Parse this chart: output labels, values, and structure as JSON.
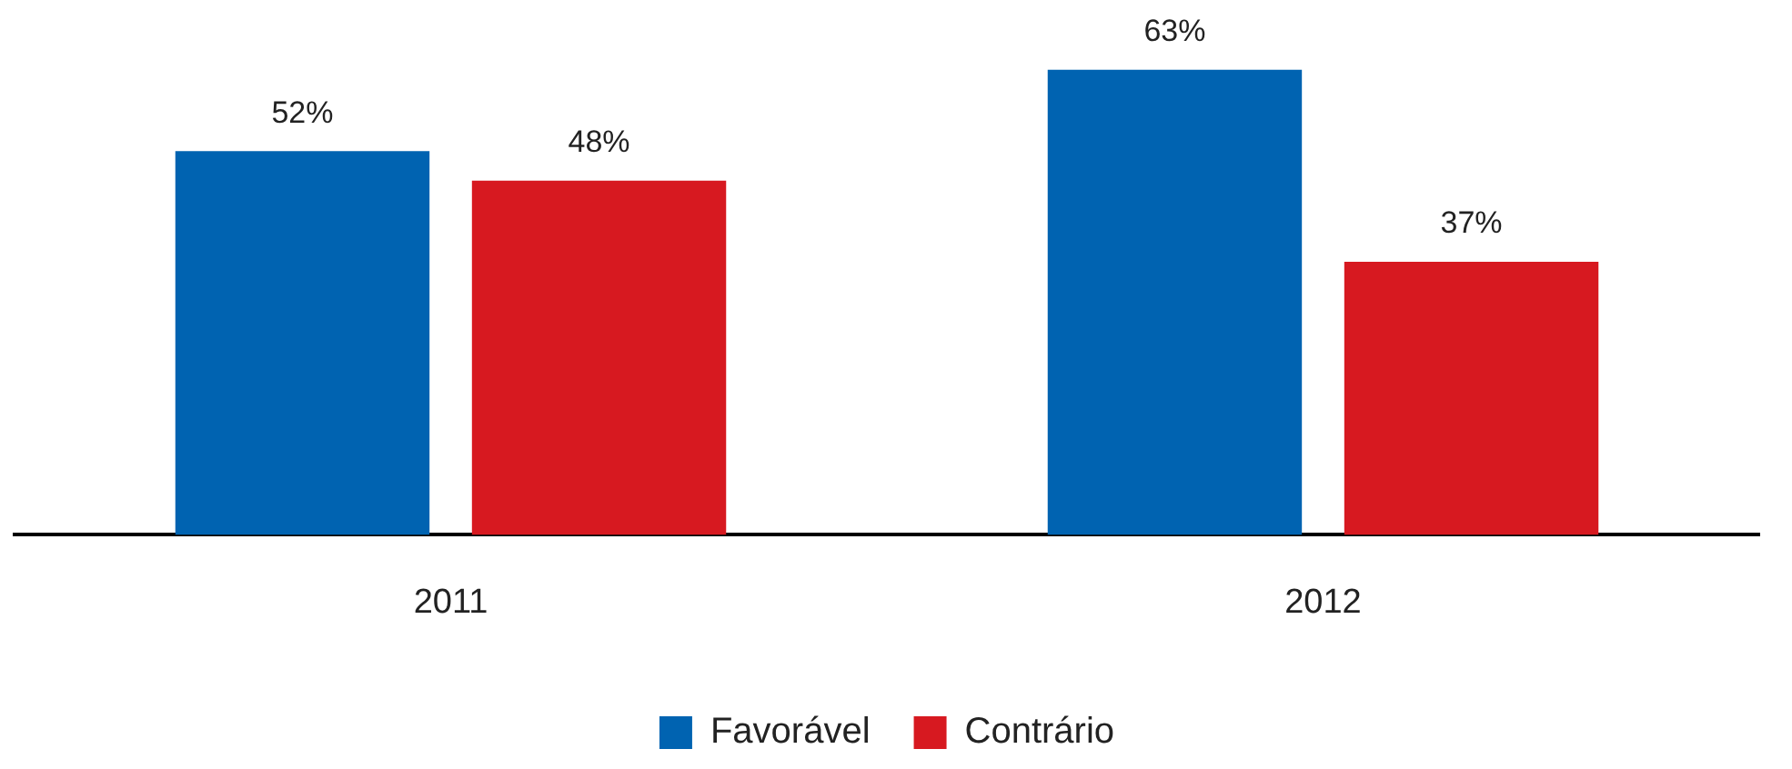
{
  "chart_data": {
    "type": "bar",
    "categories": [
      "2011",
      "2012"
    ],
    "series": [
      {
        "name": "Favorável",
        "color": "#0063b1",
        "values": [
          52,
          63
        ],
        "value_labels": [
          "52%",
          "63%"
        ]
      },
      {
        "name": "Contrário",
        "color": "#d71920",
        "values": [
          48,
          37
        ],
        "value_labels": [
          "48%",
          "37%"
        ]
      }
    ],
    "legend": "bottom",
    "grid": false
  }
}
